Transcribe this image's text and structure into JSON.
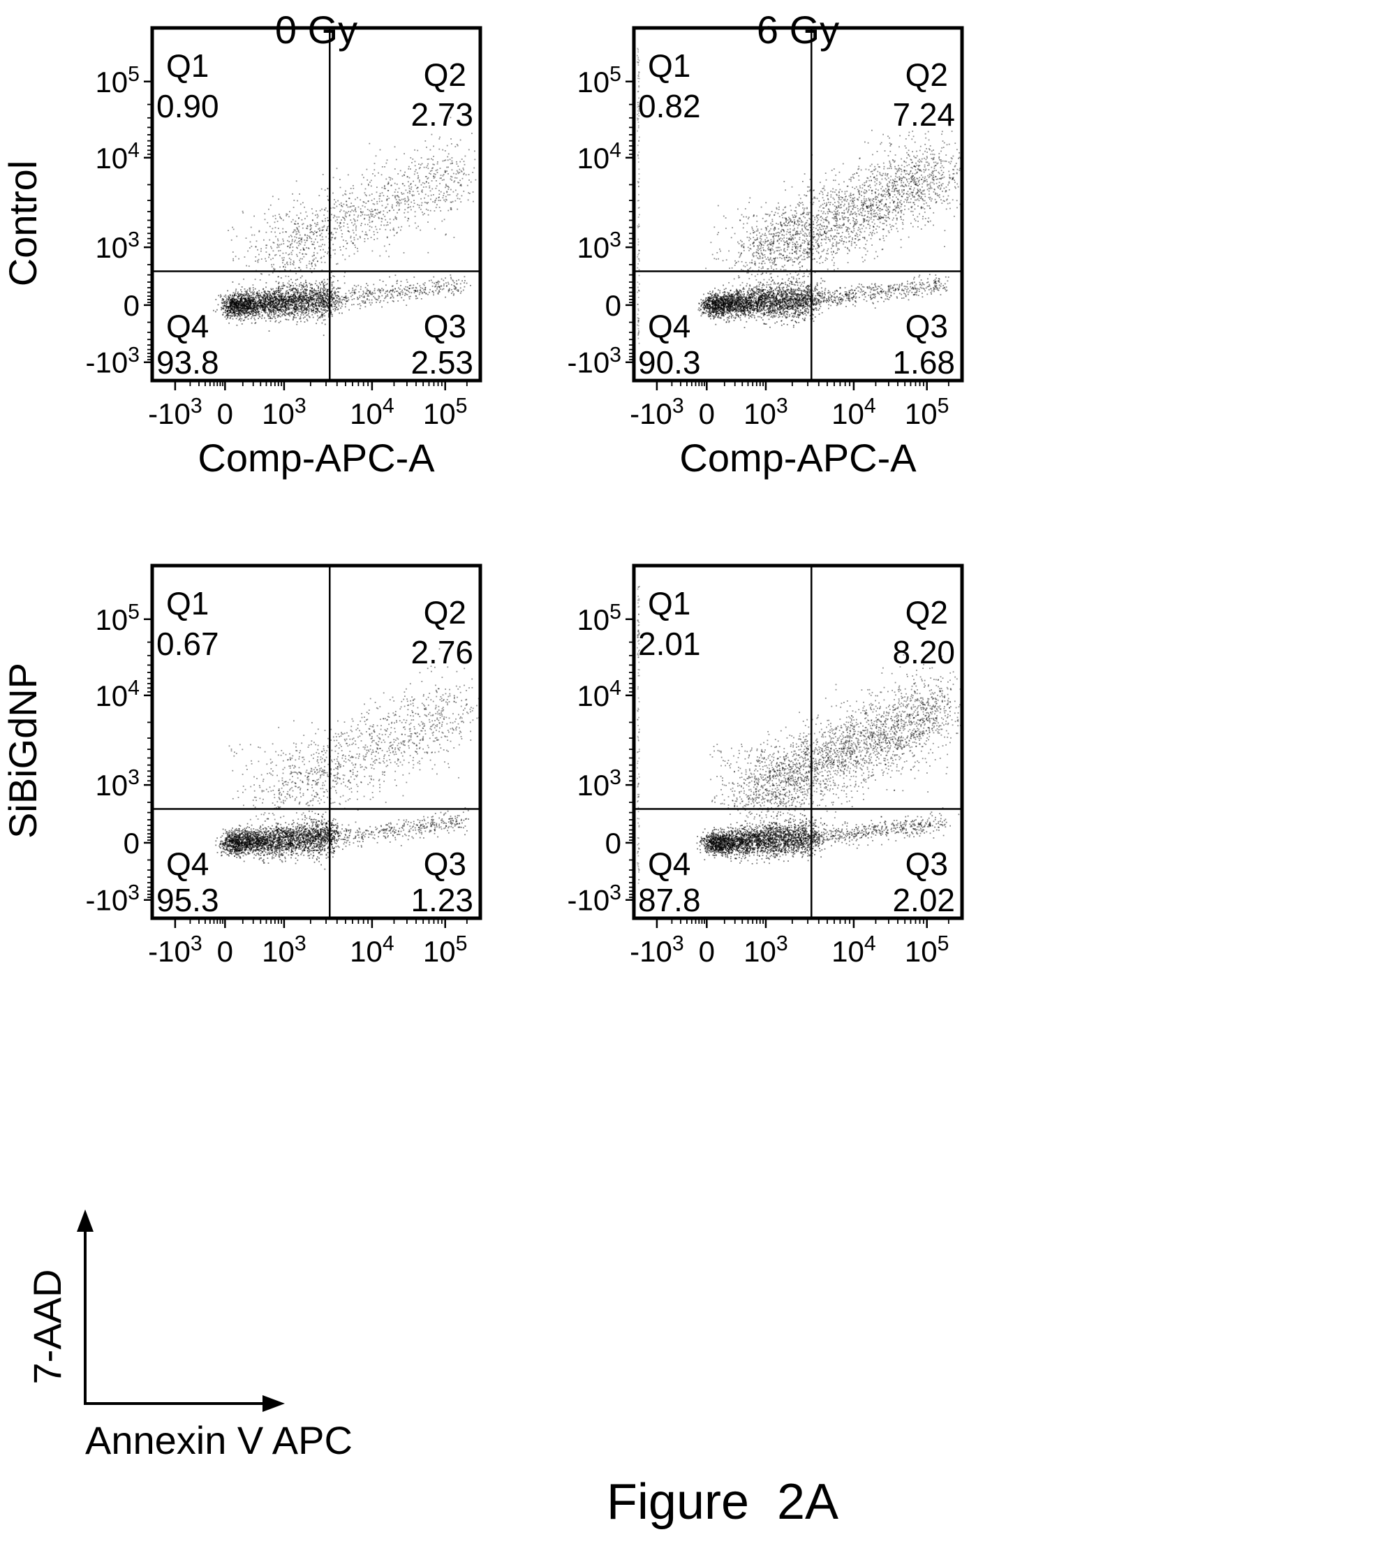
{
  "column_titles": [
    "0 Gy",
    "6 Gy"
  ],
  "row_labels": [
    "Control",
    "SiBiGdNP"
  ],
  "figure_caption": "Figure  2A",
  "legend_axes": {
    "y_label": "7-AAD",
    "x_label": "Annexin V APC"
  },
  "chart_data": [
    {
      "type": "scatter",
      "panel": "Control / 0 Gy",
      "xlabel": "Comp-APC-A",
      "ylabel": "",
      "x_scale": "biexponential",
      "y_scale": "biexponential",
      "x_ticks": [
        "-10^3",
        "0",
        "10^3",
        "10^4",
        "10^5"
      ],
      "y_ticks": [
        "10^5",
        "10^4",
        "10^3",
        "0",
        "-10^3"
      ],
      "quadrants": [
        {
          "name": "Q1",
          "percent": "0.90"
        },
        {
          "name": "Q2",
          "percent": "2.73"
        },
        {
          "name": "Q3",
          "percent": "2.53"
        },
        {
          "name": "Q4",
          "percent": "93.8"
        }
      ]
    },
    {
      "type": "scatter",
      "panel": "Control / 6 Gy",
      "xlabel": "Comp-APC-A",
      "ylabel": "",
      "x_scale": "biexponential",
      "y_scale": "biexponential",
      "x_ticks": [
        "-10^3",
        "0",
        "10^3",
        "10^4",
        "10^5"
      ],
      "y_ticks": [
        "10^5",
        "10^4",
        "10^3",
        "0",
        "-10^3"
      ],
      "quadrants": [
        {
          "name": "Q1",
          "percent": "0.82"
        },
        {
          "name": "Q2",
          "percent": "7.24"
        },
        {
          "name": "Q3",
          "percent": "1.68"
        },
        {
          "name": "Q4",
          "percent": "90.3"
        }
      ]
    },
    {
      "type": "scatter",
      "panel": "SiBiGdNP / 0 Gy",
      "xlabel": "",
      "ylabel": "",
      "x_scale": "biexponential",
      "y_scale": "biexponential",
      "x_ticks": [
        "-10^3",
        "0",
        "10^3",
        "10^4",
        "10^5"
      ],
      "y_ticks": [
        "10^5",
        "10^4",
        "10^3",
        "0",
        "-10^3"
      ],
      "quadrants": [
        {
          "name": "Q1",
          "percent": "0.67"
        },
        {
          "name": "Q2",
          "percent": "2.76"
        },
        {
          "name": "Q3",
          "percent": "1.23"
        },
        {
          "name": "Q4",
          "percent": "95.3"
        }
      ]
    },
    {
      "type": "scatter",
      "panel": "SiBiGdNP / 6 Gy",
      "xlabel": "",
      "ylabel": "",
      "x_scale": "biexponential",
      "y_scale": "biexponential",
      "x_ticks": [
        "-10^3",
        "0",
        "10^3",
        "10^4",
        "10^5"
      ],
      "y_ticks": [
        "10^5",
        "10^4",
        "10^3",
        "0",
        "-10^3"
      ],
      "quadrants": [
        {
          "name": "Q1",
          "percent": "2.01"
        },
        {
          "name": "Q2",
          "percent": "8.20"
        },
        {
          "name": "Q3",
          "percent": "2.02"
        },
        {
          "name": "Q4",
          "percent": "87.8"
        }
      ]
    }
  ]
}
